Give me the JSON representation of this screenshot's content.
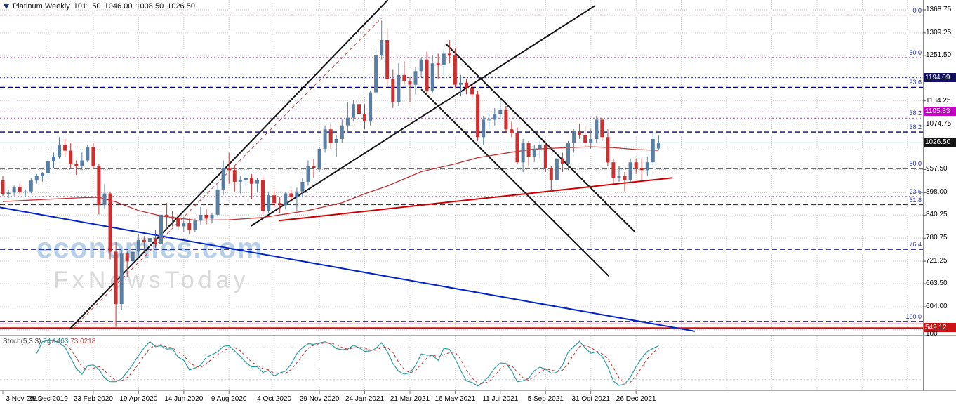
{
  "header": {
    "symbol": "Platinum,Weekly",
    "open": "1011.50",
    "high": "1046.00",
    "low": "1008.50",
    "close": "1026.50"
  },
  "watermark": {
    "line1": "economies.com",
    "line2": "FxNewsToday"
  },
  "indicator": {
    "label": "Stoch(5,3,3)",
    "value_main": "74.1463",
    "value_signal": "73.0218"
  },
  "chart_data": {
    "type": "candlestick",
    "title": "Platinum,Weekly",
    "colors": {
      "up": "#5a7fa4",
      "down": "#cc2f2f",
      "ma": "#c03030",
      "background": "#ffffff"
    },
    "y_axis": {
      "visible_labels": [
        1368.75,
        1309.25,
        1251.5,
        1134.25,
        1074.75,
        957.5,
        898.0,
        840.25,
        780.75,
        721.25,
        663.5,
        604.0
      ],
      "grid_prices": [
        1368.75,
        1309.25,
        1251.5,
        1194.0,
        1134.25,
        1074.75,
        1015.25,
        957.5,
        898.0,
        840.25,
        780.75,
        721.25,
        663.5,
        604.0,
        544.5
      ]
    },
    "x_axis": {
      "labels": [
        {
          "text": "3 Nov 2019",
          "week": 0
        },
        {
          "text": "29 Dec 2019",
          "week": 8
        },
        {
          "text": "23 Feb 2020",
          "week": 16
        },
        {
          "text": "19 Apr 2020",
          "week": 24
        },
        {
          "text": "14 Jun 2020",
          "week": 32
        },
        {
          "text": "9 Aug 2020",
          "week": 40
        },
        {
          "text": "4 Oct 2020",
          "week": 48
        },
        {
          "text": "29 Nov 2020",
          "week": 56
        },
        {
          "text": "24 Jan 2021",
          "week": 64
        },
        {
          "text": "21 Mar 2021",
          "week": 72
        },
        {
          "text": "16 May 2021",
          "week": 80
        },
        {
          "text": "11 Jul 2021",
          "week": 88
        },
        {
          "text": "5 Sep 2021",
          "week": 96
        },
        {
          "text": "31 Oct 2021",
          "week": 104
        },
        {
          "text": "26 Dec 2021",
          "week": 112
        }
      ]
    },
    "price_tags": [
      {
        "text": "1194.09",
        "price": 1194.09,
        "bg": "#11115e"
      },
      {
        "text": "1105.83",
        "price": 1105.83,
        "bg": "#c400c4"
      },
      {
        "text": "1026.50",
        "price": 1026.5,
        "bg": "#151515"
      },
      {
        "text": "549.12",
        "price": 549.12,
        "bg": "#cc1414"
      }
    ],
    "levels": [
      {
        "price": 1355.0,
        "style": "dashed",
        "color": "#994499",
        "width": 1,
        "label": "0.0"
      },
      {
        "price": 1246.0,
        "style": "dotted",
        "color": "#cc22cc",
        "width": 1,
        "label": "50.0"
      },
      {
        "price": 1194.09,
        "style": "dotted",
        "color": "#3a3a9a",
        "width": 1
      },
      {
        "price": 1169.0,
        "style": "dashed",
        "color": "#000080",
        "width": 1.4,
        "label": "23.6"
      },
      {
        "price": 1105.83,
        "style": "dotted",
        "color": "#cc22cc",
        "width": 1
      },
      {
        "price": 1090.0,
        "style": "dotted",
        "color": "#994499",
        "width": 1,
        "label": "38.2"
      },
      {
        "price": 1054.0,
        "style": "dashed",
        "color": "#000080",
        "width": 1.4,
        "label": "38.2"
      },
      {
        "price": 1026.5,
        "style": "solid",
        "color": "#a8d4de",
        "width": 1
      },
      {
        "price": 960.0,
        "style": "dashed",
        "color": "#3c3c3c",
        "width": 1.2,
        "label": "50.0"
      },
      {
        "price": 888.0,
        "style": "dotted",
        "color": "#994499",
        "width": 1,
        "label": "23.6"
      },
      {
        "price": 867.0,
        "style": "dashed",
        "color": "#3c3c3c",
        "width": 1.2,
        "label": "61.8"
      },
      {
        "price": 752.0,
        "style": "dashed",
        "color": "#000080",
        "width": 1.4,
        "label": "76.4"
      },
      {
        "price": 566.0,
        "style": "dashed",
        "color": "#000080",
        "width": 1.4,
        "label": "100.0"
      },
      {
        "price": 560.0,
        "style": "solid",
        "color": "#cc2222",
        "width": 1
      },
      {
        "price": 549.12,
        "style": "solid",
        "color": "#cc1111",
        "width": 2
      }
    ],
    "trendlines": [
      {
        "name": "ascending-trendline-left",
        "color": "#141414",
        "width": 2,
        "from": [
          11.9,
          548
        ],
        "to": [
          68.1,
          1394
        ]
      },
      {
        "name": "ascending-trendline-right",
        "color": "#141414",
        "width": 2,
        "from": [
          43.9,
          812
        ],
        "to": [
          104.8,
          1380
        ]
      },
      {
        "name": "descending-channel-upper",
        "color": "#141414",
        "width": 2,
        "from": [
          78.3,
          1282
        ],
        "to": [
          111.8,
          797
        ]
      },
      {
        "name": "descending-channel-lower",
        "color": "#141414",
        "width": 2,
        "from": [
          74.0,
          1164
        ],
        "to": [
          107.2,
          683
        ]
      },
      {
        "name": "rising-wedge-dashed-red",
        "color": "#cc4444",
        "width": 1,
        "dash": "5,4",
        "from": [
          12.5,
          550
        ],
        "to": [
          67.1,
          1349
        ]
      },
      {
        "name": "ascending-support-red",
        "color": "#cc0000",
        "width": 2,
        "from": [
          48.9,
          826
        ],
        "to": [
          118.3,
          936
        ]
      },
      {
        "name": "descending-trendline-blue",
        "color": "#0022cc",
        "width": 2,
        "from": [
          -0.5,
          860
        ],
        "to": [
          122.4,
          541
        ]
      }
    ],
    "ma_points": [
      [
        0,
        875
      ],
      [
        8,
        881
      ],
      [
        14,
        885
      ],
      [
        17,
        886
      ],
      [
        20,
        874
      ],
      [
        24,
        852
      ],
      [
        28,
        838
      ],
      [
        34,
        827
      ],
      [
        40,
        828
      ],
      [
        46,
        834
      ],
      [
        54,
        852
      ],
      [
        60,
        872
      ],
      [
        64,
        895
      ],
      [
        68,
        915
      ],
      [
        74,
        952
      ],
      [
        80,
        972
      ],
      [
        84,
        988
      ],
      [
        90,
        1002
      ],
      [
        94,
        1010
      ],
      [
        100,
        1014
      ],
      [
        104,
        1016
      ],
      [
        108,
        1014
      ],
      [
        112,
        1009
      ],
      [
        116,
        1007
      ]
    ],
    "ohlc": [
      [
        930,
        941,
        889,
        895
      ],
      [
        895,
        906,
        884,
        898
      ],
      [
        898,
        916,
        890,
        912
      ],
      [
        912,
        921,
        894,
        899
      ],
      [
        899,
        906,
        886,
        901
      ],
      [
        901,
        936,
        896,
        929
      ],
      [
        929,
        946,
        921,
        941
      ],
      [
        941,
        951,
        926,
        948
      ],
      [
        948,
        986,
        941,
        979
      ],
      [
        979,
        1001,
        962,
        991
      ],
      [
        991,
        1041,
        985,
        1021
      ],
      [
        1021,
        1036,
        991,
        1006
      ],
      [
        1006,
        1026,
        961,
        971
      ],
      [
        971,
        981,
        944,
        966
      ],
      [
        966,
        1001,
        956,
        981
      ],
      [
        981,
        1021,
        976,
        1016
      ],
      [
        1016,
        1026,
        961,
        966
      ],
      [
        966,
        971,
        842,
        866
      ],
      [
        866,
        921,
        856,
        896
      ],
      [
        896,
        901,
        726,
        746
      ],
      [
        746,
        771,
        552,
        611
      ],
      [
        611,
        751,
        596,
        741
      ],
      [
        741,
        746,
        681,
        721
      ],
      [
        721,
        756,
        701,
        746
      ],
      [
        746,
        791,
        736,
        776
      ],
      [
        776,
        786,
        746,
        771
      ],
      [
        771,
        791,
        751,
        781
      ],
      [
        781,
        801,
        756,
        766
      ],
      [
        766,
        846,
        761,
        841
      ],
      [
        841,
        871,
        801,
        836
      ],
      [
        836,
        851,
        811,
        831
      ],
      [
        831,
        841,
        801,
        811
      ],
      [
        811,
        836,
        796,
        821
      ],
      [
        821,
        831,
        791,
        801
      ],
      [
        801,
        831,
        796,
        826
      ],
      [
        826,
        861,
        816,
        841
      ],
      [
        841,
        856,
        816,
        831
      ],
      [
        831,
        846,
        821,
        841
      ],
      [
        841,
        921,
        836,
        906
      ],
      [
        906,
        981,
        891,
        961
      ],
      [
        961,
        1001,
        921,
        956
      ],
      [
        956,
        966,
        901,
        926
      ],
      [
        926,
        941,
        896,
        931
      ],
      [
        931,
        956,
        916,
        936
      ],
      [
        936,
        946,
        881,
        921
      ],
      [
        921,
        936,
        901,
        931
      ],
      [
        931,
        941,
        841,
        851
      ],
      [
        851,
        901,
        846,
        891
      ],
      [
        891,
        906,
        861,
        871
      ],
      [
        871,
        886,
        846,
        866
      ],
      [
        866,
        901,
        856,
        896
      ],
      [
        896,
        906,
        876,
        886
      ],
      [
        886,
        911,
        851,
        901
      ],
      [
        901,
        936,
        886,
        926
      ],
      [
        926,
        981,
        916,
        966
      ],
      [
        966,
        986,
        936,
        961
      ],
      [
        961,
        1016,
        951,
        1011
      ],
      [
        1011,
        1071,
        1001,
        1061
      ],
      [
        1061,
        1076,
        1011,
        1026
      ],
      [
        1026,
        1046,
        991,
        1036
      ],
      [
        1036,
        1086,
        1026,
        1071
      ],
      [
        1071,
        1131,
        1051,
        1091
      ],
      [
        1091,
        1136,
        1081,
        1126
      ],
      [
        1126,
        1136,
        1071,
        1101
      ],
      [
        1101,
        1126,
        1061,
        1081
      ],
      [
        1081,
        1161,
        1071,
        1156
      ],
      [
        1156,
        1271,
        1151,
        1251
      ],
      [
        1251,
        1341,
        1241,
        1291
      ],
      [
        1291,
        1321,
        1171,
        1191
      ],
      [
        1191,
        1216,
        1116,
        1131
      ],
      [
        1131,
        1231,
        1121,
        1201
      ],
      [
        1201,
        1236,
        1176,
        1186
      ],
      [
        1186,
        1196,
        1131,
        1176
      ],
      [
        1176,
        1221,
        1151,
        1211
      ],
      [
        1211,
        1246,
        1196,
        1241
      ],
      [
        1241,
        1261,
        1151,
        1161
      ],
      [
        1161,
        1251,
        1156,
        1231
      ],
      [
        1231,
        1256,
        1191,
        1226
      ],
      [
        1226,
        1266,
        1201,
        1256
      ],
      [
        1256,
        1291,
        1231,
        1251
      ],
      [
        1251,
        1271,
        1166,
        1176
      ],
      [
        1176,
        1201,
        1146,
        1181
      ],
      [
        1181,
        1191,
        1151,
        1166
      ],
      [
        1166,
        1176,
        1141,
        1151
      ],
      [
        1151,
        1161,
        1031,
        1041
      ],
      [
        1041,
        1096,
        1021,
        1086
      ],
      [
        1086,
        1101,
        1061,
        1086
      ],
      [
        1086,
        1116,
        1071,
        1101
      ],
      [
        1101,
        1136,
        1086,
        1111
      ],
      [
        1111,
        1121,
        1051,
        1061
      ],
      [
        1061,
        1081,
        1041,
        1051
      ],
      [
        1051,
        1066,
        971,
        976
      ],
      [
        976,
        1036,
        951,
        1026
      ],
      [
        1026,
        1031,
        966,
        991
      ],
      [
        991,
        1021,
        976,
        1011
      ],
      [
        1011,
        1031,
        986,
        1021
      ],
      [
        1021,
        1026,
        951,
        961
      ],
      [
        961,
        966,
        901,
        931
      ],
      [
        931,
        1001,
        911,
        986
      ],
      [
        986,
        1001,
        951,
        971
      ],
      [
        971,
        1031,
        956,
        1026
      ],
      [
        1026,
        1061,
        1001,
        1056
      ],
      [
        1056,
        1076,
        1036,
        1046
      ],
      [
        1046,
        1071,
        1016,
        1026
      ],
      [
        1026,
        1061,
        1011,
        1036
      ],
      [
        1036,
        1096,
        1026,
        1086
      ],
      [
        1086,
        1091,
        1031,
        1041
      ],
      [
        1041,
        1061,
        966,
        976
      ],
      [
        976,
        986,
        921,
        936
      ],
      [
        936,
        966,
        926,
        941
      ],
      [
        941,
        951,
        901,
        931
      ],
      [
        931,
        986,
        926,
        976
      ],
      [
        976,
        986,
        946,
        961
      ],
      [
        961,
        986,
        931,
        956
      ],
      [
        956,
        991,
        941,
        976
      ],
      [
        976,
        1051,
        966,
        1036
      ],
      [
        1011.5,
        1046,
        1008.5,
        1026.5
      ]
    ],
    "indicator": {
      "name": "Stochastic",
      "params": [
        5,
        3,
        3
      ],
      "main": 74.1463,
      "signal": 73.0218,
      "range": [
        0,
        100
      ],
      "level_lines": [
        20,
        80
      ],
      "scale_top_label": "100",
      "colors": {
        "main": "#2f9e9e",
        "signal": "#cc3333"
      }
    }
  }
}
